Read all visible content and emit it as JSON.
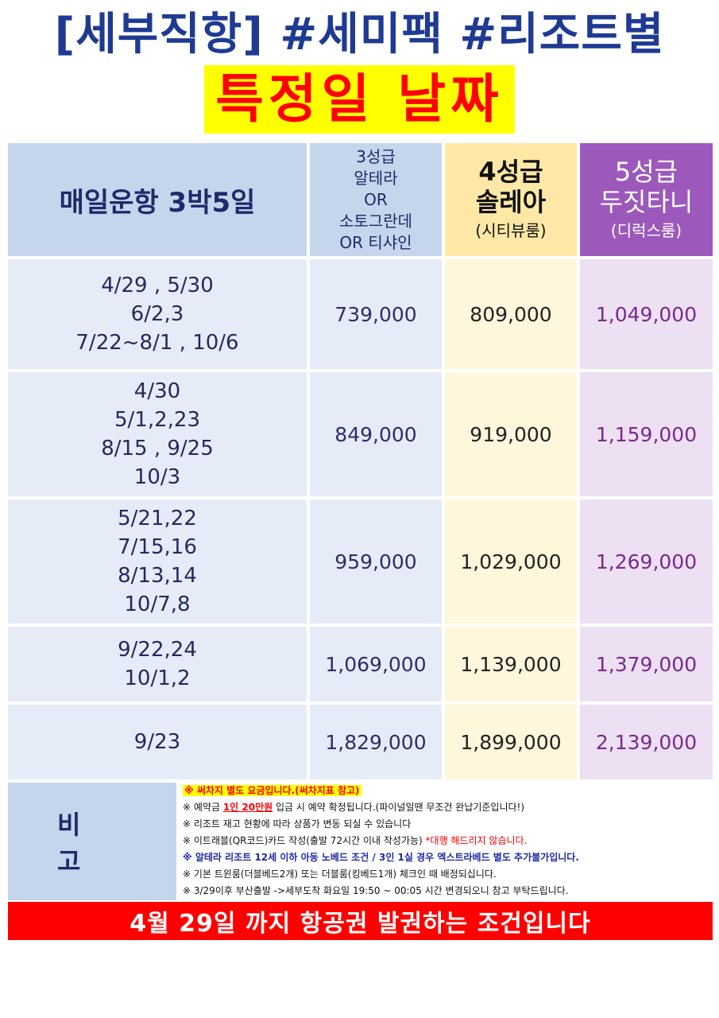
{
  "title_line1": "[세부직항] #세미팩 #리조트별",
  "title_line2": "특정일 날짜",
  "header": {
    "schedule": "매일운항 3박5일",
    "tier3_lines": [
      "3성급",
      "알테라",
      "OR",
      "소토그란데",
      "OR 티샤인"
    ],
    "tier4_name_line1": "4성급",
    "tier4_name_line2": "솔레아",
    "tier4_room": "(시티뷰룸)",
    "tier5_name_line1": "5성급",
    "tier5_name_line2": "두짓타니",
    "tier5_room": "(디럭스룸)"
  },
  "rows": [
    {
      "dates": "4/29 , 5/30\n6/2,3\n7/22~8/1 , 10/6",
      "p3": "739,000",
      "p4": "809,000",
      "p5": "1,049,000"
    },
    {
      "dates": "4/30\n5/1,2,23\n8/15 , 9/25\n10/3",
      "p3": "849,000",
      "p4": "919,000",
      "p5": "1,159,000"
    },
    {
      "dates": "5/21,22\n7/15,16\n8/13,14\n10/7,8",
      "p3": "959,000",
      "p4": "1,029,000",
      "p5": "1,269,000"
    },
    {
      "dates": "9/22,24\n10/1,2",
      "p3": "1,069,000",
      "p4": "1,139,000",
      "p5": "1,379,000"
    },
    {
      "dates": "9/23",
      "p3": "1,829,000",
      "p4": "1,899,000",
      "p5": "2,139,000"
    }
  ],
  "notes": {
    "label": "비고",
    "line1": "※ 써차지 별도 요금입니다.(써차지표 참고)",
    "line2_pre": "※ 예약금 ",
    "line2_hl": "1인 20만원",
    "line2_post": " 입금 시 예약 확정됩니다.(파이널일땐 무조건 완납기준입니다!)",
    "line3": "※ 리조트 재고 현황에 따라 상품가 변동 되실 수 있습니다",
    "line4_pre": "※ 이트래블(QR코드)카드 작성(출발 72시간 이내 작성가능) ",
    "line4_red": "*대행 해드리지 않습니다.",
    "line5": "※ 알테라 리조트 12세 이하 아동 노베드 조건 / 3인 1실 경우 엑스트라베드 별도 추가불가입니다.",
    "line6": "※ 기본 트윈룸(더블베드2개) 또는 더블룸(킹베드1개) 체크인 때 배정되십니다.",
    "line7": "※ 3/29이후 부산출발 ->세부도착 화요일 19:50 ~ 00:05 시간 변경되오니 참고 부탁드립니다."
  },
  "footer": "4월 29일 까지 항공권 발권하는 조건입니다",
  "colors": {
    "title_blue": "#1f3a93",
    "title2_red": "#ff0000",
    "title2_bg": "#ffff00",
    "header_blue": "#c5d5ec",
    "header_gold": "#ffe8a6",
    "header_purple": "#9c59bb",
    "footer_red": "#ff0000"
  }
}
